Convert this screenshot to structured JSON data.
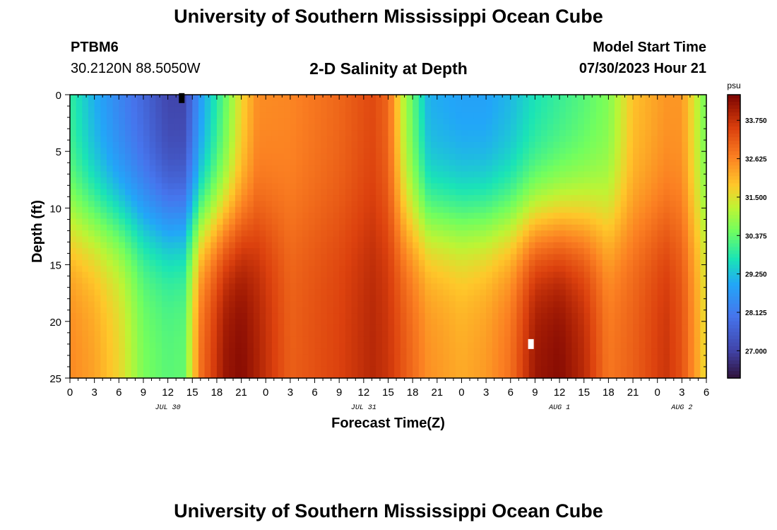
{
  "header": {
    "title": "University of Southern Mississippi Ocean Cube",
    "station_id": "PTBM6",
    "station_coords": "30.2120N  88.5050W",
    "subtitle": "2-D Salinity at Depth",
    "model_label": "Model Start Time",
    "model_time": "07/30/2023 Hour 21"
  },
  "footer": {
    "title": "University of Southern Mississippi Ocean Cube"
  },
  "chart_data": {
    "type": "heatmap",
    "title": "2-D Salinity at Depth",
    "xlabel": "Forecast Time(Z)",
    "ylabel": "Depth (ft)",
    "x_range_hours": [
      0,
      78
    ],
    "y_range_ft": [
      0,
      25
    ],
    "y_ticks": [
      "0",
      "5",
      "10",
      "15",
      "20",
      "25"
    ],
    "x_tick_labels": [
      "0",
      "3",
      "6",
      "9",
      "12",
      "15",
      "18",
      "21",
      "0",
      "3",
      "6",
      "9",
      "12",
      "15",
      "18",
      "21",
      "0",
      "3",
      "6",
      "9",
      "12",
      "15",
      "18",
      "21",
      "0",
      "3",
      "6"
    ],
    "date_labels": [
      {
        "label": "JUL 30",
        "hour": 12
      },
      {
        "label": "JUL 31",
        "hour": 36
      },
      {
        "label": "AUG 1",
        "hour": 60
      },
      {
        "label": "AUG 2",
        "hour": 75
      }
    ],
    "colorbar": {
      "unit": "psu",
      "min": 26.2,
      "max": 34.5,
      "ticks": [
        "33.750",
        "32.625",
        "31.500",
        "30.375",
        "29.250",
        "28.125",
        "27.000"
      ],
      "tick_values": [
        33.75,
        32.625,
        31.5,
        30.375,
        29.25,
        28.125,
        27.0
      ]
    },
    "salinity_profiles": [
      {
        "hour": 0,
        "surface": 29.9,
        "bottom": 32.6
      },
      {
        "hour": 3,
        "surface": 29.0,
        "bottom": 32.3
      },
      {
        "hour": 6,
        "surface": 28.3,
        "bottom": 31.7
      },
      {
        "hour": 9,
        "surface": 27.7,
        "bottom": 30.6
      },
      {
        "hour": 12,
        "surface": 27.0,
        "bottom": 30.3
      },
      {
        "hour": 14,
        "surface": 27.0,
        "bottom": 30.4
      },
      {
        "hour": 16,
        "surface": 28.7,
        "bottom": 32.9
      },
      {
        "hour": 19,
        "surface": 30.3,
        "bottom": 34.2
      },
      {
        "hour": 21,
        "surface": 31.6,
        "bottom": 34.4
      },
      {
        "hour": 23,
        "surface": 32.5,
        "bottom": 34.0
      },
      {
        "hour": 27,
        "surface": 32.6,
        "bottom": 33.1
      },
      {
        "hour": 33,
        "surface": 33.0,
        "bottom": 33.5
      },
      {
        "hour": 37,
        "surface": 33.4,
        "bottom": 33.9
      },
      {
        "hour": 39,
        "surface": 33.0,
        "bottom": 33.7
      },
      {
        "hour": 41,
        "surface": 31.0,
        "bottom": 33.2
      },
      {
        "hour": 44,
        "surface": 29.0,
        "bottom": 32.5
      },
      {
        "hour": 48,
        "surface": 28.8,
        "bottom": 32.2
      },
      {
        "hour": 51,
        "surface": 28.8,
        "bottom": 32.4
      },
      {
        "hour": 54,
        "surface": 29.1,
        "bottom": 32.9
      },
      {
        "hour": 57,
        "surface": 29.6,
        "bottom": 34.2
      },
      {
        "hour": 60,
        "surface": 29.9,
        "bottom": 34.4
      },
      {
        "hour": 63,
        "surface": 30.2,
        "bottom": 33.9
      },
      {
        "hour": 66,
        "surface": 30.6,
        "bottom": 32.8
      },
      {
        "hour": 69,
        "surface": 31.9,
        "bottom": 33.1
      },
      {
        "hour": 73,
        "surface": 32.4,
        "bottom": 33.7
      },
      {
        "hour": 75,
        "surface": 32.4,
        "bottom": 33.3
      },
      {
        "hour": 77,
        "surface": 31.1,
        "bottom": 32.2
      },
      {
        "hour": 78,
        "surface": 30.4,
        "bottom": 31.5
      }
    ],
    "markers": [
      {
        "name": "min-salinity-marker",
        "hour": 13.7,
        "depth_ft": 0.3,
        "color": "#000000"
      },
      {
        "name": "max-salinity-marker",
        "hour": 56.5,
        "depth_ft": 22.0,
        "color": "#ffffff"
      }
    ]
  }
}
